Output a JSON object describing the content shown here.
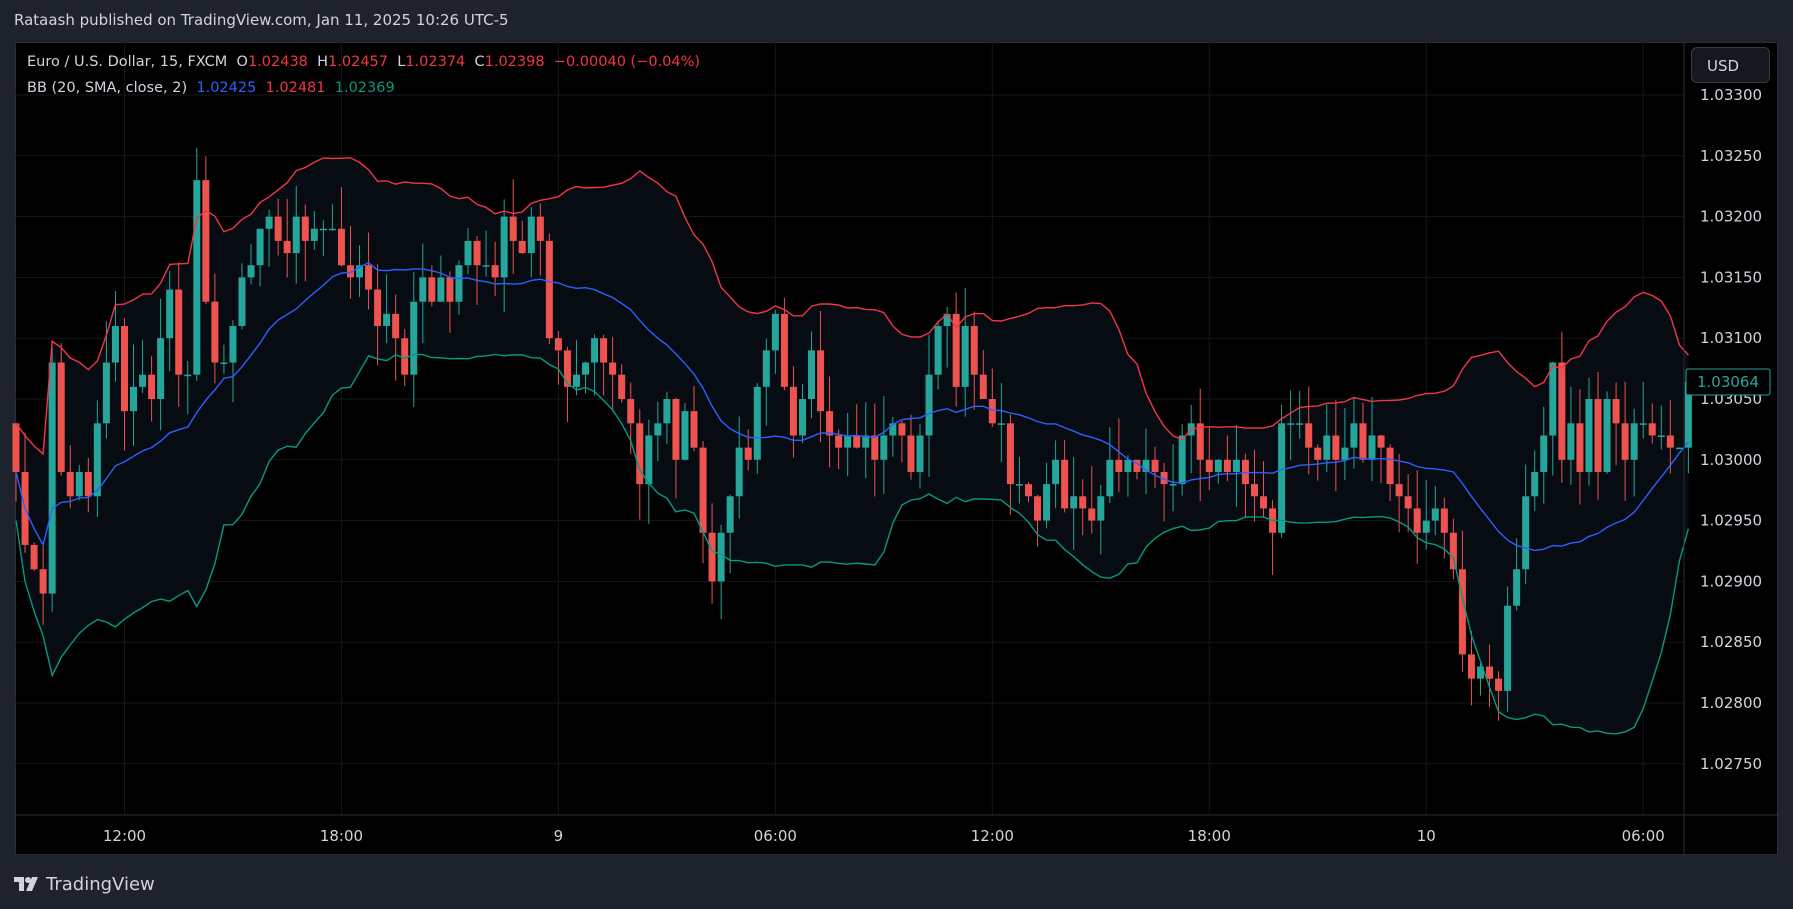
{
  "header": {
    "published": "Rataash published on TradingView.com, Jan 11, 2025 10:26 UTC-5"
  },
  "legend": {
    "symbol": "Euro / U.S. Dollar, 15, FXCM",
    "o_label": "O",
    "open": "1.02438",
    "h_label": "H",
    "high": "1.02457",
    "l_label": "L",
    "low": "1.02374",
    "c_label": "C",
    "close": "1.02398",
    "change": "−0.00040 (−0.04%)",
    "indicator": "BB (20, SMA, close, 2)",
    "basis": "1.02425",
    "upper": "1.02481",
    "lower": "1.02369"
  },
  "currency_button": "USD",
  "current_price_label": "1.03064",
  "footer": {
    "brand": "TradingView"
  },
  "colors": {
    "up": "#26a69a",
    "down": "#ef5350",
    "basis": "#2962ff",
    "upper": "#f23645",
    "lower": "#089981"
  },
  "chart_data": {
    "type": "candlestick",
    "title": "Euro / U.S. Dollar, 15, FXCM",
    "ylim": [
      1.027,
      1.0334
    ],
    "y_ticks": [
      "1.03300",
      "1.03250",
      "1.03200",
      "1.03150",
      "1.03100",
      "1.03050",
      "1.03000",
      "1.02950",
      "1.02900",
      "1.02850",
      "1.02800",
      "1.02750"
    ],
    "x_ticks": [
      {
        "label": "12:00",
        "index": 12
      },
      {
        "label": "18:00",
        "index": 36
      },
      {
        "label": "9",
        "index": 60
      },
      {
        "label": "06:00",
        "index": 84
      },
      {
        "label": "12:00",
        "index": 108
      },
      {
        "label": "18:00",
        "index": 132
      },
      {
        "label": "10",
        "index": 156
      },
      {
        "label": "06:00",
        "index": 180
      }
    ],
    "first_open": 1.0303,
    "closes": [
      1.0299,
      1.0293,
      1.0291,
      1.0289,
      1.0308,
      1.0299,
      1.0297,
      1.0299,
      1.0297,
      1.0303,
      1.0308,
      1.0311,
      1.0304,
      1.0306,
      1.0307,
      1.0305,
      1.031,
      1.0314,
      1.0307,
      1.0307,
      1.0323,
      1.0313,
      1.0308,
      1.0308,
      1.0311,
      1.0315,
      1.0316,
      1.0319,
      1.032,
      1.0318,
      1.0317,
      1.032,
      1.0318,
      1.0319,
      1.0319,
      1.0319,
      1.0316,
      1.0315,
      1.0316,
      1.0314,
      1.0311,
      1.0312,
      1.031,
      1.0307,
      1.0313,
      1.0315,
      1.0313,
      1.0315,
      1.0313,
      1.0316,
      1.0318,
      1.0316,
      1.0316,
      1.0315,
      1.032,
      1.0318,
      1.0317,
      1.032,
      1.0318,
      1.031,
      1.0309,
      1.0306,
      1.0307,
      1.0308,
      1.031,
      1.0308,
      1.0307,
      1.0305,
      1.0303,
      1.0298,
      1.0302,
      1.0303,
      1.0305,
      1.03,
      1.0304,
      1.0301,
      1.0294,
      1.029,
      1.0294,
      1.0297,
      1.0301,
      1.03,
      1.0306,
      1.0309,
      1.0312,
      1.0306,
      1.0302,
      1.0305,
      1.0309,
      1.0304,
      1.0302,
      1.0301,
      1.0302,
      1.0301,
      1.0302,
      1.03,
      1.0302,
      1.0303,
      1.0302,
      1.0299,
      1.0302,
      1.0307,
      1.0311,
      1.0312,
      1.0306,
      1.0311,
      1.0307,
      1.0305,
      1.0303,
      1.0303,
      1.0298,
      1.0298,
      1.0297,
      1.0295,
      1.0298,
      1.03,
      1.0296,
      1.0297,
      1.0296,
      1.0295,
      1.0297,
      1.03,
      1.0299,
      1.03,
      1.0299,
      1.03,
      1.0299,
      1.0298,
      1.0298,
      1.0302,
      1.0303,
      1.03,
      1.0299,
      1.03,
      1.0299,
      1.03,
      1.0298,
      1.0297,
      1.0296,
      1.0294,
      1.0303,
      1.0303,
      1.0303,
      1.0301,
      1.03,
      1.0302,
      1.03,
      1.0301,
      1.0303,
      1.03,
      1.0302,
      1.0301,
      1.0298,
      1.0297,
      1.0296,
      1.0294,
      1.0295,
      1.0296,
      1.0294,
      1.0291,
      1.0284,
      1.0282,
      1.0283,
      1.0282,
      1.0281,
      1.0288,
      1.0291,
      1.0297,
      1.0299,
      1.0302,
      1.0308,
      1.03,
      1.0303,
      1.0299,
      1.0305,
      1.0299,
      1.0305,
      1.0303,
      1.03,
      1.0303,
      1.0303,
      1.0302,
      1.0302,
      1.0301,
      1.0301,
      1.03064
    ],
    "indicator": {
      "name": "Bollinger Bands",
      "length": 20,
      "stddev": 2
    }
  }
}
